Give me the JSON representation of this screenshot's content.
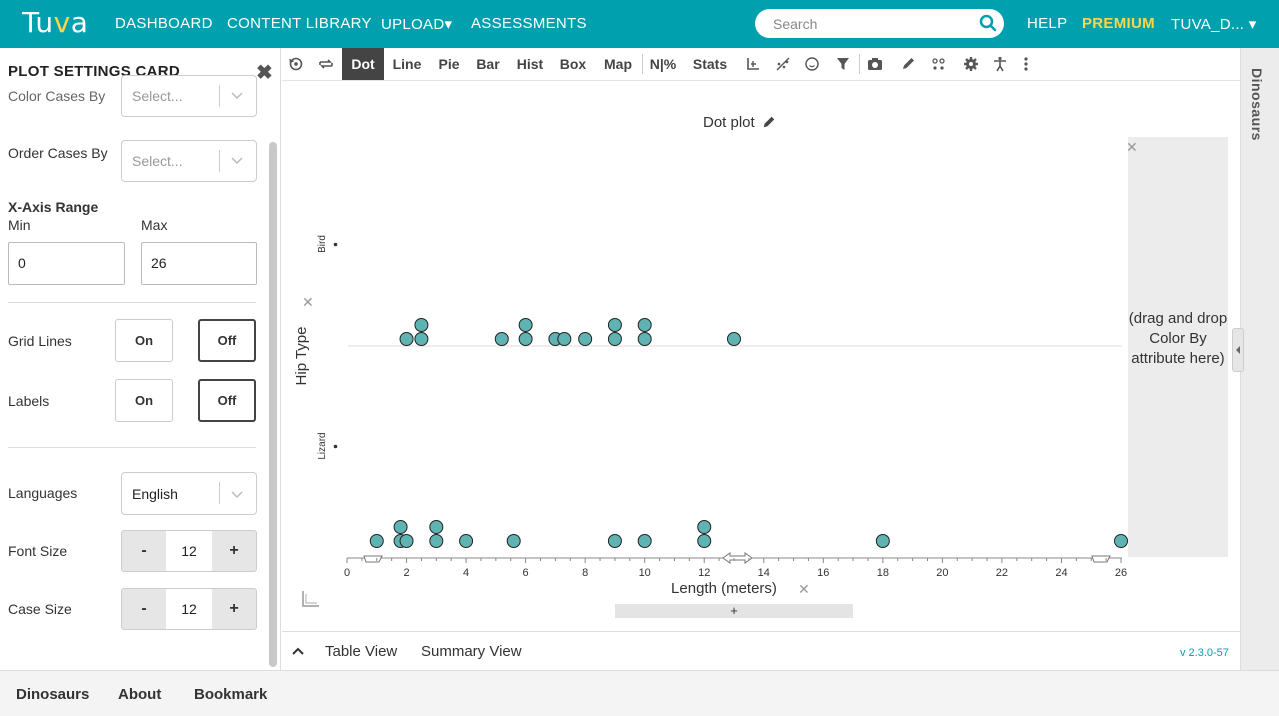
{
  "nav": {
    "logo": "Tuva",
    "dashboard": "DASHBOARD",
    "content_library": "CONTENT LIBRARY",
    "upload": "UPLOAD▾",
    "assessments": "ASSESSMENTS",
    "search_placeholder": "Search",
    "help": "HELP",
    "premium": "PREMIUM",
    "user": "TUVA_D... ▾",
    "colors": {
      "bar": "#00a0ae",
      "premium": "#ffd54a"
    }
  },
  "panel": {
    "title": "PLOT SETTINGS CARD",
    "color_cases_by": {
      "label": "Color Cases By",
      "placeholder": "Select..."
    },
    "order_cases_by": {
      "label": "Order Cases By",
      "placeholder": "Select..."
    },
    "x_axis_range": {
      "label": "X-Axis Range",
      "min_label": "Min",
      "max_label": "Max",
      "min": "0",
      "max": "26"
    },
    "grid_lines": {
      "label": "Grid Lines",
      "on": "On",
      "off": "Off",
      "selected": "Off"
    },
    "labels": {
      "label": "Labels",
      "on": "On",
      "off": "Off",
      "selected": "Off"
    },
    "languages": {
      "label": "Languages",
      "value": "English"
    },
    "font_size": {
      "label": "Font Size",
      "minus": "-",
      "value": "12",
      "plus": "+"
    },
    "case_size": {
      "label": "Case Size",
      "minus": "-",
      "value": "12",
      "plus": "+"
    }
  },
  "toolbar": {
    "tabs": [
      "Dot",
      "Line",
      "Pie",
      "Bar",
      "Hist",
      "Box",
      "Map",
      "N|%",
      "Stats"
    ],
    "active": "Dot",
    "icons": [
      "reset-icon",
      "shuffle-icon",
      "axis-swap-icon",
      "trendline-icon",
      "smiley-icon",
      "filter-icon",
      "camera-icon",
      "pen-icon",
      "dots-icon",
      "gear-icon",
      "accessibility-icon",
      "more-icon"
    ]
  },
  "plot": {
    "title": "Dot plot",
    "legend_drop_text": "(drag and drop Color By attribute here)",
    "add_label": "+"
  },
  "chart_data": {
    "type": "scatter",
    "title": "Dot plot",
    "xlabel": "Length (meters)",
    "ylabel": "Hip Type",
    "xlim": [
      0,
      26
    ],
    "x_ticks": [
      "0",
      "2",
      "4",
      "6",
      "8",
      "10",
      "12",
      "14",
      "16",
      "18",
      "20",
      "22",
      "24",
      "26"
    ],
    "categories": [
      "Bird",
      "Lizard"
    ],
    "series": [
      {
        "name": "Bird",
        "values": [
          2,
          2.5,
          2.5,
          5.2,
          6,
          6,
          7,
          7.3,
          8,
          9,
          9,
          10,
          10,
          13
        ]
      },
      {
        "name": "Lizard",
        "values": [
          1,
          1.8,
          1.8,
          2,
          3,
          3,
          4,
          5.6,
          9,
          10,
          12,
          12,
          18,
          26
        ]
      }
    ],
    "point_color": "#5fb3b3",
    "grid": false,
    "legend": "none"
  },
  "side_tab": {
    "label": "Dinosaurs"
  },
  "viewbar": {
    "table_view": "Table View",
    "summary_view": "Summary View",
    "version": "v 2.3.0-57"
  },
  "footer": {
    "dinosaurs": "Dinosaurs",
    "about": "About",
    "bookmark": "Bookmark"
  }
}
